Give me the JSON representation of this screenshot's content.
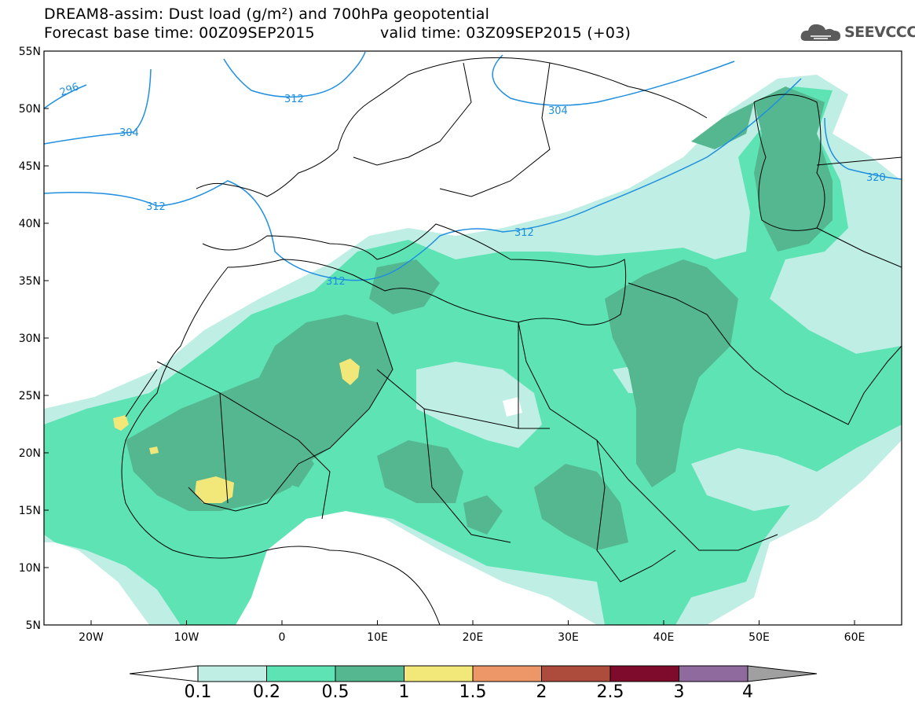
{
  "title": {
    "line1": "DREAM8-assim: Dust load (g/m²) and 700hPa geopotential",
    "line2_left": "Forecast base time: 00Z09SEP2015",
    "line2_right": "valid time: 03Z09SEP2015 (+03)"
  },
  "logo": {
    "text": "SEEVCCC",
    "icon": "cloud-icon"
  },
  "map": {
    "lat_labels": [
      "55N",
      "50N",
      "45N",
      "40N",
      "35N",
      "30N",
      "25N",
      "20N",
      "15N",
      "10N",
      "5N"
    ],
    "lon_labels": [
      "20W",
      "10W",
      "0",
      "10E",
      "20E",
      "30E",
      "40E",
      "50E",
      "60E"
    ],
    "contour_labels": [
      "296",
      "304",
      "312",
      "312",
      "304",
      "312",
      "312",
      "320"
    ]
  },
  "colorbar": {
    "colors": [
      "#ffffff",
      "#bfeee4",
      "#5ee3b4",
      "#55b790",
      "#f2e879",
      "#ed9769",
      "#ad4b3d",
      "#7e0b2b",
      "#8f6a9f",
      "#a0a0a0"
    ],
    "labels": [
      "0.1",
      "0.2",
      "0.5",
      "1",
      "1.5",
      "2",
      "2.5",
      "3",
      "4"
    ]
  }
}
